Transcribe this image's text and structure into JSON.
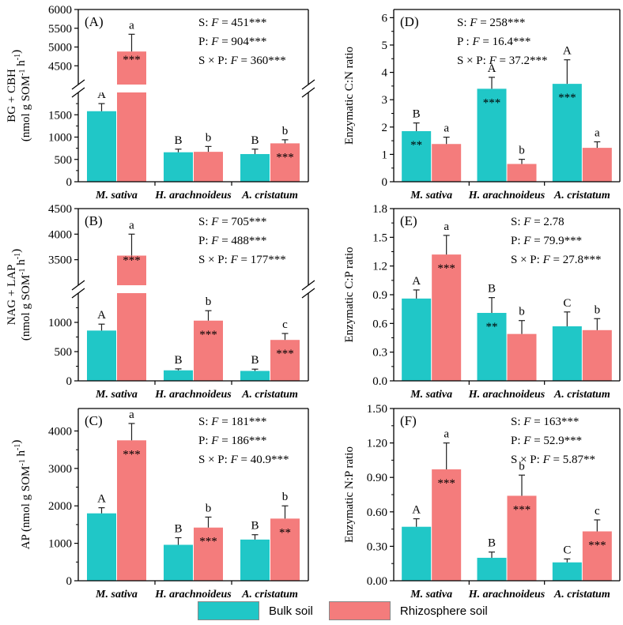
{
  "colors": {
    "bulk": "#20C7C7",
    "rhizo": "#F47C7C"
  },
  "legend": {
    "bulk": "Bulk soil",
    "rhizo": "Rhizosphere soil"
  },
  "chart_data": [
    {
      "id": "A",
      "type": "bar",
      "label": "(A)",
      "ylabel1": "BG + CBH",
      "ylabel2_html": "(nmol g SOM<tspan baseline-shift='super' font-size='10'>-1</tspan> h<tspan baseline-shift='super' font-size='10'>-1</tspan>)",
      "ylabel2": "(nmol g SOM-1 h-1)",
      "categories": [
        "M. sativa",
        "H. arachnoideus",
        "A. cristatum"
      ],
      "series": [
        {
          "name": "Bulk soil",
          "values": [
            1580,
            660,
            620
          ],
          "errors": [
            170,
            70,
            110
          ],
          "letters": [
            "A",
            "B",
            "B"
          ],
          "marks": [
            "",
            "",
            ""
          ]
        },
        {
          "name": "Rhizosphere soil",
          "values": [
            4880,
            670,
            860
          ],
          "errors": [
            460,
            120,
            80
          ],
          "letters": [
            "a",
            "b",
            "b"
          ],
          "marks": [
            "***",
            "",
            "***"
          ]
        }
      ],
      "broken": true,
      "lower_ylim": [
        0,
        2000
      ],
      "lower_ticks": [
        "0",
        "500",
        "1000",
        "1500"
      ],
      "upper_ylim": [
        4000,
        6000
      ],
      "upper_ticks": [
        "4500",
        "5000",
        "5500",
        "6000"
      ],
      "stats": [
        "S: F = 451***",
        "P: F = 904***",
        "S × P: F = 360***"
      ]
    },
    {
      "id": "B",
      "type": "bar",
      "label": "(B)",
      "ylabel1": "NAG + LAP",
      "ylabel2": "(nmol g SOM-1 h-1)",
      "categories": [
        "M. sativa",
        "H. arachnoideus",
        "A. cristatum"
      ],
      "series": [
        {
          "name": "Bulk soil",
          "values": [
            860,
            180,
            170
          ],
          "errors": [
            110,
            25,
            30
          ],
          "letters": [
            "A",
            "B",
            "B"
          ],
          "marks": [
            "",
            "",
            ""
          ]
        },
        {
          "name": "Rhizosphere soil",
          "values": [
            3580,
            1030,
            700
          ],
          "errors": [
            420,
            170,
            110
          ],
          "letters": [
            "a",
            "b",
            "c"
          ],
          "marks": [
            "***",
            "***",
            "***"
          ]
        }
      ],
      "broken": true,
      "lower_ylim": [
        0,
        1500
      ],
      "lower_ticks": [
        "0",
        "500",
        "1000"
      ],
      "upper_ylim": [
        3000,
        4500
      ],
      "upper_ticks": [
        "3500",
        "4000",
        "4500"
      ],
      "stats": [
        "S: F = 705***",
        "P: F = 488***",
        "S × P: F = 177***"
      ]
    },
    {
      "id": "C",
      "type": "bar",
      "label": "(C)",
      "ylabel1": "AP (nmol g SOM-1 h-1)",
      "categories": [
        "M. sativa",
        "H. arachnoideus",
        "A. cristatum"
      ],
      "series": [
        {
          "name": "Bulk soil",
          "values": [
            1800,
            960,
            1100
          ],
          "errors": [
            150,
            190,
            130
          ],
          "letters": [
            "A",
            "B",
            "B"
          ],
          "marks": [
            "",
            "",
            ""
          ]
        },
        {
          "name": "Rhizosphere soil",
          "values": [
            3750,
            1420,
            1660
          ],
          "errors": [
            450,
            280,
            340
          ],
          "letters": [
            "a",
            "b",
            "b"
          ],
          "marks": [
            "***",
            "***",
            "**"
          ]
        }
      ],
      "broken": false,
      "ylim": [
        0,
        4600
      ],
      "ticks": [
        0,
        1000,
        2000,
        3000,
        4000
      ],
      "tickfmt": 0,
      "stats": [
        "S: F = 181***",
        "P: F = 186***",
        "S × P: F = 40.9***"
      ]
    },
    {
      "id": "D",
      "type": "bar",
      "label": "(D)",
      "ylabel1": "Enzymatic C:N ratio",
      "categories": [
        "M. sativa",
        "H. arachnoideus",
        "A. cristatum"
      ],
      "series": [
        {
          "name": "Bulk soil",
          "values": [
            1.85,
            3.4,
            3.58
          ],
          "errors": [
            0.3,
            0.42,
            0.88
          ],
          "letters": [
            "B",
            "A",
            "A"
          ],
          "marks": [
            "**",
            "***",
            "***"
          ]
        },
        {
          "name": "Rhizosphere soil",
          "values": [
            1.38,
            0.65,
            1.24
          ],
          "errors": [
            0.25,
            0.17,
            0.22
          ],
          "letters": [
            "a",
            "b",
            "a"
          ],
          "marks": [
            "",
            "",
            ""
          ]
        }
      ],
      "broken": false,
      "ylim": [
        0,
        6.3
      ],
      "ticks": [
        0,
        1,
        2,
        3,
        4,
        5,
        6
      ],
      "tickfmt": 0,
      "stats": [
        "S: F = 258***",
        "P : F = 16.4***",
        "S × P: F = 37.2***"
      ]
    },
    {
      "id": "E",
      "type": "bar",
      "label": "(E)",
      "ylabel1": "Enzymatic C:P ratio",
      "categories": [
        "M. sativa",
        "H. arachnoideus",
        "A. cristatum"
      ],
      "series": [
        {
          "name": "Bulk soil",
          "values": [
            0.86,
            0.71,
            0.57
          ],
          "errors": [
            0.09,
            0.16,
            0.15
          ],
          "letters": [
            "A",
            "B",
            "C"
          ],
          "marks": [
            "",
            "**",
            ""
          ]
        },
        {
          "name": "Rhizosphere soil",
          "values": [
            1.32,
            0.49,
            0.53
          ],
          "errors": [
            0.2,
            0.14,
            0.12
          ],
          "letters": [
            "a",
            "b",
            "b"
          ],
          "marks": [
            "***",
            "",
            ""
          ]
        }
      ],
      "broken": false,
      "ylim": [
        0,
        1.8
      ],
      "ticks": [
        0,
        0.3,
        0.6,
        0.9,
        1.2,
        1.5,
        1.8
      ],
      "tickfmt": 1,
      "stats": [
        "S: F = 2.78",
        "P: F = 79.9***",
        "S × P: F = 27.8***"
      ]
    },
    {
      "id": "F",
      "type": "bar",
      "label": "(F)",
      "ylabel1": "Enzymatic N:P ratio",
      "categories": [
        "M. sativa",
        "H. arachnoideus",
        "A. cristatum"
      ],
      "series": [
        {
          "name": "Bulk soil",
          "values": [
            0.47,
            0.2,
            0.16
          ],
          "errors": [
            0.07,
            0.05,
            0.03
          ],
          "letters": [
            "A",
            "B",
            "C"
          ],
          "marks": [
            "",
            "",
            ""
          ]
        },
        {
          "name": "Rhizosphere soil",
          "values": [
            0.97,
            0.74,
            0.43
          ],
          "errors": [
            0.23,
            0.18,
            0.1
          ],
          "letters": [
            "a",
            "b",
            "c"
          ],
          "marks": [
            "***",
            "***",
            "***"
          ]
        }
      ],
      "broken": false,
      "ylim": [
        0,
        1.5
      ],
      "ticks": [
        0,
        0.3,
        0.6,
        0.9,
        1.2,
        1.5
      ],
      "tickfmt": 2,
      "stats": [
        "S: F = 163***",
        "P: F = 52.9***",
        "S × P: F = 5.87**"
      ]
    }
  ]
}
